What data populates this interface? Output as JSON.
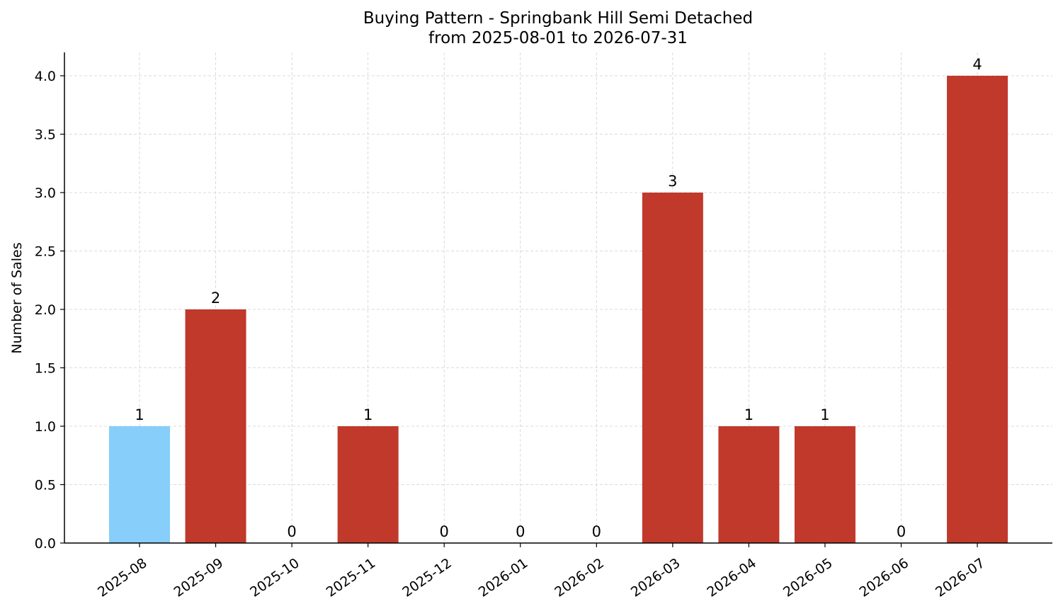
{
  "chart_data": {
    "type": "bar",
    "title_line1": "Buying Pattern - Springbank Hill Semi Detached",
    "title_line2": "from 2025-08-01 to 2026-07-31",
    "xlabel": "",
    "ylabel": "Number of Sales",
    "categories": [
      "2025-08",
      "2025-09",
      "2025-10",
      "2025-11",
      "2025-12",
      "2026-01",
      "2026-02",
      "2026-03",
      "2026-04",
      "2026-05",
      "2026-06",
      "2026-07"
    ],
    "values": [
      1,
      2,
      0,
      1,
      0,
      0,
      0,
      3,
      1,
      1,
      0,
      4
    ],
    "bar_colors": [
      "#87CEFA",
      "#C0392B",
      "#C0392B",
      "#C0392B",
      "#C0392B",
      "#C0392B",
      "#C0392B",
      "#C0392B",
      "#C0392B",
      "#C0392B",
      "#C0392B",
      "#C0392B"
    ],
    "yticks": [
      "0.0",
      "0.5",
      "1.0",
      "1.5",
      "2.0",
      "2.5",
      "3.0",
      "3.5",
      "4.0"
    ],
    "ylim": [
      0,
      4.2
    ],
    "grid": true
  }
}
